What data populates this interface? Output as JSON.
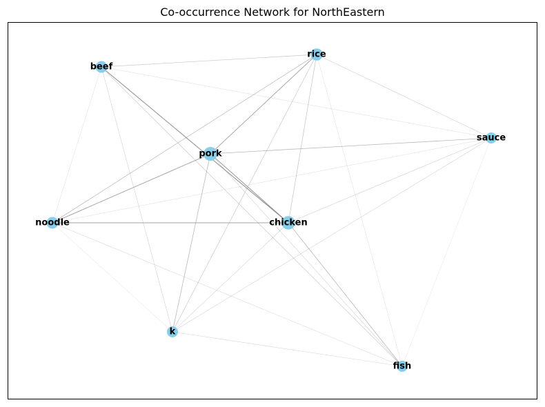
{
  "title": "Co-occurrence Network for NorthEastern",
  "node_color": "#87ceeb",
  "edge_color": "#808080",
  "nodes": [
    {
      "id": "pork",
      "label": "pork",
      "size": 1.0
    },
    {
      "id": "chicken",
      "label": "chicken",
      "size": 0.95
    },
    {
      "id": "rice",
      "label": "rice",
      "size": 0.75
    },
    {
      "id": "beef",
      "label": "beef",
      "size": 0.7
    },
    {
      "id": "noodle",
      "label": "noodle",
      "size": 0.7
    },
    {
      "id": "sauce",
      "label": "sauce",
      "size": 0.6
    },
    {
      "id": "k",
      "label": "k",
      "size": 0.6
    },
    {
      "id": "fish",
      "label": "fish",
      "size": 0.6
    }
  ],
  "edges": [
    {
      "source": "beef",
      "target": "chicken",
      "weight": 0.9
    },
    {
      "source": "pork",
      "target": "chicken",
      "weight": 0.85
    },
    {
      "source": "pork",
      "target": "rice",
      "weight": 0.75
    },
    {
      "source": "pork",
      "target": "noodle",
      "weight": 0.75
    },
    {
      "source": "noodle",
      "target": "chicken",
      "weight": 0.75
    },
    {
      "source": "noodle",
      "target": "rice",
      "weight": 0.5
    },
    {
      "source": "pork",
      "target": "sauce",
      "weight": 0.55
    },
    {
      "source": "pork",
      "target": "k",
      "weight": 0.55
    },
    {
      "source": "chicken",
      "target": "fish",
      "weight": 0.55
    },
    {
      "source": "beef",
      "target": "rice",
      "weight": 0.4
    },
    {
      "source": "beef",
      "target": "fish",
      "weight": 0.4
    },
    {
      "source": "rice",
      "target": "chicken",
      "weight": 0.45
    },
    {
      "source": "rice",
      "target": "k",
      "weight": 0.4
    },
    {
      "source": "rice",
      "target": "sauce",
      "weight": 0.35
    },
    {
      "source": "sauce",
      "target": "chicken",
      "weight": 0.35
    },
    {
      "source": "sauce",
      "target": "k",
      "weight": 0.3
    },
    {
      "source": "chicken",
      "target": "k",
      "weight": 0.3
    },
    {
      "source": "beef",
      "target": "k",
      "weight": 0.3
    },
    {
      "source": "pork",
      "target": "fish",
      "weight": 0.3
    },
    {
      "source": "beef",
      "target": "sauce",
      "weight": 0.2
    },
    {
      "source": "noodle",
      "target": "beef",
      "weight": 0.2
    },
    {
      "source": "noodle",
      "target": "sauce",
      "weight": 0.2
    },
    {
      "source": "noodle",
      "target": "fish",
      "weight": 0.25
    },
    {
      "source": "noodle",
      "target": "k",
      "weight": 0.2
    },
    {
      "source": "rice",
      "target": "fish",
      "weight": 0.2
    },
    {
      "source": "k",
      "target": "fish",
      "weight": 0.25
    },
    {
      "source": "sauce",
      "target": "fish",
      "weight": 0.15
    }
  ]
}
